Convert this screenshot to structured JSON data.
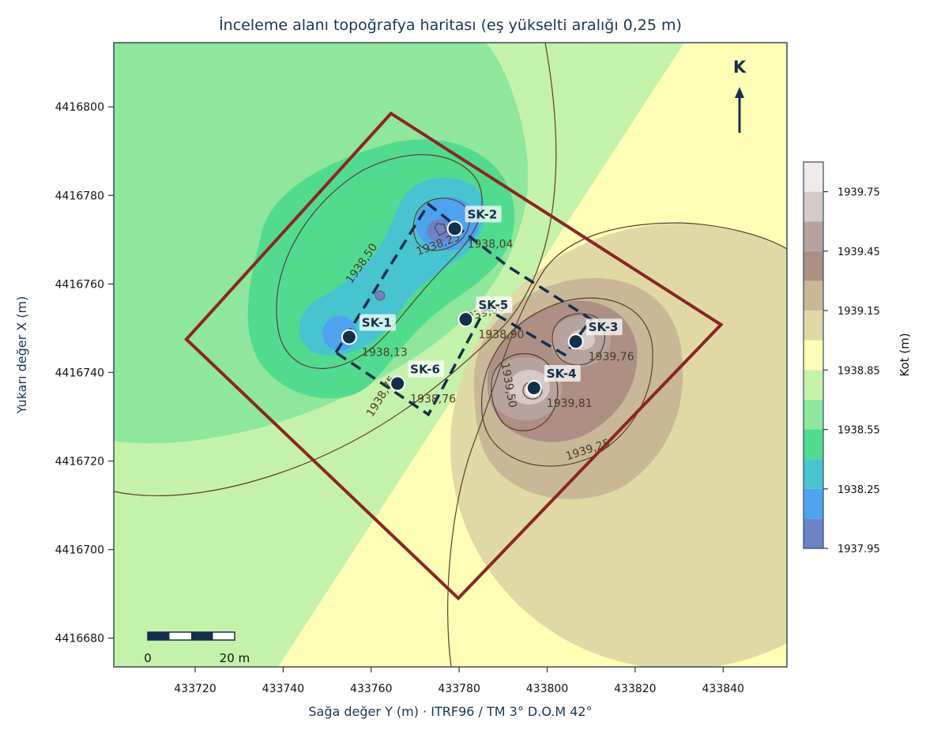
{
  "title": "İnceleme alanı topoğrafya haritası  (eş yükselti aralığı 0,25 m)",
  "xlabel": "Sağa değer  Y (m)  ·  ITRF96 / TM 3°  D.O.M 42°",
  "ylabel": "Yukarı değer  X (m)",
  "colorbar_label": "Kot (m)",
  "north_label": "K",
  "scale_bar": {
    "start_label": "0",
    "end_label": "20 m",
    "length_m": 20
  },
  "colors": {
    "parcel_outline": "#8b2525",
    "building_outline": "#12304a",
    "borehole_fill": "#12304a",
    "contour_line": "#5a3e2b"
  },
  "chart_data": {
    "type": "contour-map",
    "xlim": [
      433701.5,
      433854.5
    ],
    "ylim": [
      4416673.5,
      4416814.5
    ],
    "x_ticks": [
      433720,
      433740,
      433760,
      433780,
      433800,
      433820,
      433840
    ],
    "y_ticks": [
      4416680,
      4416700,
      4416720,
      4416740,
      4416760,
      4416780,
      4416800
    ],
    "colorbar": {
      "min": 1937.95,
      "max": 1939.9,
      "step": 0.15,
      "ticks": [
        "1937.95",
        "1938.25",
        "1938.55",
        "1938.85",
        "1939.15",
        "1939.45",
        "1939.75"
      ],
      "band_colors": [
        "#6a83c9",
        "#4fa3ee",
        "#48c4d0",
        "#52db8f",
        "#8ee79c",
        "#c5f2aa",
        "#fffeb6",
        "#e0d9a6",
        "#c8b898",
        "#ae8f84",
        "#b7a39e",
        "#d6c9c8",
        "#f1eaea"
      ]
    },
    "boreholes": [
      {
        "id": "SK-1",
        "y": 433755,
        "x": 4416748,
        "elev_label": "1938,13"
      },
      {
        "id": "SK-2",
        "y": 433779,
        "x": 4416772.5,
        "elev_label": "1938,04"
      },
      {
        "id": "SK-3",
        "y": 433806.5,
        "x": 4416747,
        "elev_label": "1939,76"
      },
      {
        "id": "SK-4",
        "y": 433797,
        "x": 4416736.5,
        "elev_label": "1939,81"
      },
      {
        "id": "SK-5",
        "y": 433781.5,
        "x": 4416752,
        "elev_label": "1938,90"
      },
      {
        "id": "SK-6",
        "y": 433766,
        "x": 4416737.5,
        "elev_label": "1938,76"
      }
    ],
    "contour_labels": [
      {
        "text": "1938,50",
        "y": 433758.5,
        "x": 4416764.2,
        "rotate": -55
      },
      {
        "text": "1938,25",
        "y": 433775.5,
        "x": 4416768.2,
        "rotate": -20
      },
      {
        "text": "1938,75",
        "y": 433763.0,
        "x": 4416734.2,
        "rotate": -58
      },
      {
        "text": "1939,50",
        "y": 433790.5,
        "x": 4416737.0,
        "rotate": 80
      },
      {
        "text": "1939,25",
        "y": 433809.5,
        "x": 4416721.8,
        "rotate": -18
      },
      {
        "text": "1939,00",
        "y": 433785.5,
        "x": 4416752.6,
        "rotate": -15
      }
    ],
    "parcel_polygon": [
      [
        433718,
        4416747.5
      ],
      [
        433764.5,
        4416798.5
      ],
      [
        433839.5,
        4416750.8
      ],
      [
        433779.8,
        4416689
      ]
    ],
    "building_polygon": [
      [
        433752,
        4416744.5
      ],
      [
        433773,
        4416778
      ],
      [
        433791,
        4416764
      ],
      [
        433810,
        4416752
      ],
      [
        433804,
        4416744
      ],
      [
        433786,
        4416754.5
      ],
      [
        433773,
        4416730.5
      ]
    ]
  }
}
